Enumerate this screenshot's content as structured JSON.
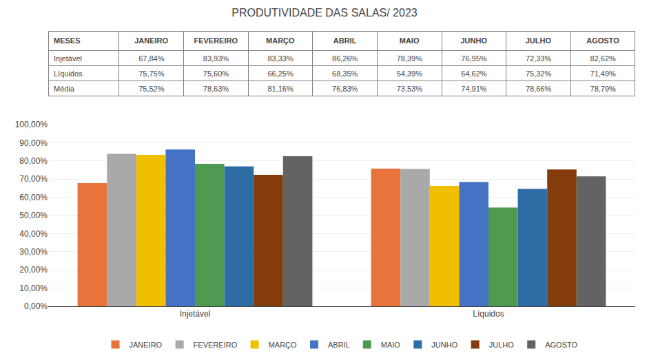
{
  "chart_data": {
    "type": "bar",
    "title": "PRODUTIVIDADE DAS SALAS/ 2023",
    "table": {
      "header": [
        "MESES",
        "JANEIRO",
        "FEVEREIRO",
        "MARÇO",
        "ABRIL",
        "MAIO",
        "JUNHO",
        "JULHO",
        "AGOSTO"
      ],
      "rows": [
        [
          "Injetável",
          "67,84%",
          "83,93%",
          "83,33%",
          "86,26%",
          "78,39%",
          "76,95%",
          "72,33%",
          "82,62%"
        ],
        [
          "Líquidos",
          "75,75%",
          "75,60%",
          "66,25%",
          "68,35%",
          "54,39%",
          "64,62%",
          "75,32%",
          "71,49%"
        ],
        [
          "Média",
          "75,52%",
          "78,63%",
          "81,16%",
          "76,83%",
          "73,53%",
          "74,91%",
          "78,66%",
          "78,79%"
        ]
      ]
    },
    "categories": [
      "Injetável",
      "Líquidos"
    ],
    "series": [
      {
        "name": "JANEIRO",
        "color": "#e8743b",
        "values": [
          67.84,
          75.75
        ]
      },
      {
        "name": "FEVEREIRO",
        "color": "#a9a9a9",
        "values": [
          83.93,
          75.6
        ]
      },
      {
        "name": "MARÇO",
        "color": "#f0c000",
        "values": [
          83.33,
          66.25
        ]
      },
      {
        "name": "ABRIL",
        "color": "#4472c4",
        "values": [
          86.26,
          68.35
        ]
      },
      {
        "name": "MAIO",
        "color": "#4e9a51",
        "values": [
          78.39,
          54.39
        ]
      },
      {
        "name": "JUNHO",
        "color": "#2e6da4",
        "values": [
          76.95,
          64.62
        ]
      },
      {
        "name": "JULHO",
        "color": "#843c0c",
        "values": [
          72.33,
          75.32
        ]
      },
      {
        "name": "AGOSTO",
        "color": "#636363",
        "values": [
          82.62,
          71.49
        ]
      }
    ],
    "ylim": [
      0,
      100
    ],
    "yticks": [
      {
        "value": 0,
        "label": "0,00%"
      },
      {
        "value": 10,
        "label": "10,00%"
      },
      {
        "value": 20,
        "label": "20,00%"
      },
      {
        "value": 30,
        "label": "30,00%"
      },
      {
        "value": 40,
        "label": "40,00%"
      },
      {
        "value": 50,
        "label": "50,00%"
      },
      {
        "value": 60,
        "label": "60,00%"
      },
      {
        "value": 70,
        "label": "70,00%"
      },
      {
        "value": 80,
        "label": "80,00%"
      },
      {
        "value": 90,
        "label": "90,00%"
      },
      {
        "value": 100,
        "label": "100,00%"
      }
    ],
    "grid": true,
    "legend": "bottom"
  }
}
